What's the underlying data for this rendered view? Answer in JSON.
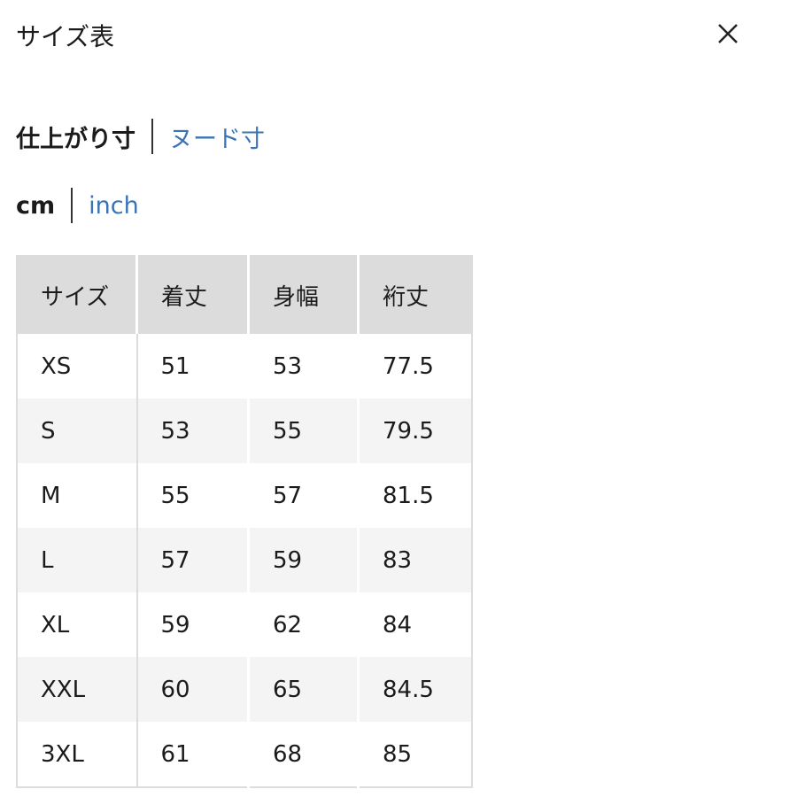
{
  "header": {
    "title": "サイズ表",
    "close_icon": "close-icon"
  },
  "measurement_toggle": {
    "active": "仕上がり寸",
    "other": "ヌード寸"
  },
  "unit_toggle": {
    "active": "cm",
    "other": "inch"
  },
  "colors": {
    "link": "#3a74b6",
    "header_bg": "#dcdcdc",
    "stripe_bg": "#f4f4f4"
  },
  "table": {
    "columns": [
      "サイズ",
      "着丈",
      "身幅",
      "裄丈"
    ],
    "rows": [
      [
        "XS",
        "51",
        "53",
        "77.5"
      ],
      [
        "S",
        "53",
        "55",
        "79.5"
      ],
      [
        "M",
        "55",
        "57",
        "81.5"
      ],
      [
        "L",
        "57",
        "59",
        "83"
      ],
      [
        "XL",
        "59",
        "62",
        "84"
      ],
      [
        "XXL",
        "60",
        "65",
        "84.5"
      ],
      [
        "3XL",
        "61",
        "68",
        "85"
      ]
    ]
  }
}
